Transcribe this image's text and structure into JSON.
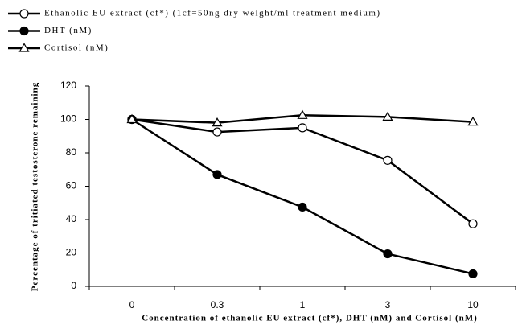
{
  "chart_data": {
    "type": "line",
    "x_label": "Concentration of ethanolic EU extract (cf*), DHT (nM) and Cortisol (nM)",
    "y_label": "Percentage of tritiated testosterone remaining",
    "categories": [
      "0",
      "0.3",
      "1",
      "3",
      "10"
    ],
    "series": [
      {
        "name": "Ethanolic EU extract (cf*) (1cf=50ng dry weight/ml treatment medium)",
        "color": "#000000",
        "marker": "circle-open",
        "values": [
          100,
          92.5,
          95,
          75.5,
          37.5
        ]
      },
      {
        "name": "DHT (nM)",
        "color": "#000000",
        "marker": "circle-filled",
        "values": [
          100,
          67,
          47.5,
          19.5,
          7.5
        ]
      },
      {
        "name": "Cortisol (nM)",
        "color": "#000000",
        "marker": "triangle-open",
        "values": [
          100,
          98,
          102.5,
          101.5,
          98.5
        ]
      }
    ],
    "ylim": [
      0,
      120
    ],
    "yticks": [
      0,
      20,
      40,
      60,
      80,
      100,
      120
    ],
    "grid": false,
    "legend": "top-left"
  }
}
